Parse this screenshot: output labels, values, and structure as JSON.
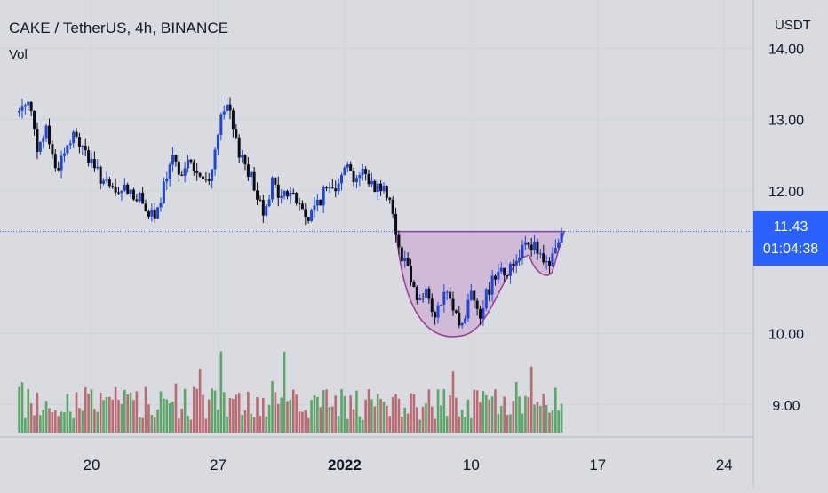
{
  "chart_title": "CAKE / TetherUS, 4h, BINANCE",
  "volume_label": "Vol",
  "currency": "USDT",
  "price_badge": {
    "price": "11.43",
    "countdown": "01:04:38"
  },
  "colors": {
    "background": "#d9dbe0",
    "axis_border": "#b7bbc4",
    "up_candle": "#1f45d6",
    "down_candle": "#0a0d16",
    "volume_up": "#5aa567",
    "volume_down": "#b96a72",
    "pattern_fill": "#cdb4d6",
    "pattern_stroke": "#9a3c93",
    "last_price_line": "#2962ff",
    "badge": "#2962ff"
  },
  "chart_data": {
    "type": "candlestick",
    "title": "CAKE / TetherUS, 4h, BINANCE",
    "y_axis": {
      "label": "USDT",
      "ticks": [
        {
          "value": 14.0,
          "label": "14.00"
        },
        {
          "value": 13.0,
          "label": "13.00"
        },
        {
          "value": 12.0,
          "label": "12.00"
        },
        {
          "value": 10.0,
          "label": "10.00"
        },
        {
          "value": 9.0,
          "label": "9.00"
        }
      ],
      "range": [
        8.5,
        14.5
      ]
    },
    "x_axis": {
      "ticks": [
        {
          "date": "2021-12-20",
          "label": "20",
          "bold": false
        },
        {
          "date": "2021-12-27",
          "label": "27",
          "bold": false
        },
        {
          "date": "2022-01-03",
          "label": "2022",
          "bold": true
        },
        {
          "date": "2022-01-10",
          "label": "10",
          "bold": false
        },
        {
          "date": "2022-01-17",
          "label": "17",
          "bold": false
        },
        {
          "date": "2022-01-24",
          "label": "24",
          "bold": false
        }
      ]
    },
    "last_price": 11.43,
    "series": [
      {
        "kind": "price_path_close",
        "points": [
          [
            "2021-12-16",
            13.1
          ],
          [
            "2021-12-16T12",
            13.35
          ],
          [
            "2021-12-17",
            12.5
          ],
          [
            "2021-12-17T12",
            12.9
          ],
          [
            "2021-12-18",
            12.3
          ],
          [
            "2021-12-18T12",
            12.55
          ],
          [
            "2021-12-19",
            12.75
          ],
          [
            "2021-12-19T12",
            12.65
          ],
          [
            "2021-12-20",
            12.35
          ],
          [
            "2021-12-20T12",
            12.2
          ],
          [
            "2021-12-21",
            12.0
          ],
          [
            "2021-12-21T12",
            11.95
          ],
          [
            "2021-12-22",
            12.05
          ],
          [
            "2021-12-22T12",
            11.9
          ],
          [
            "2021-12-23",
            11.8
          ],
          [
            "2021-12-23T12",
            11.55
          ],
          [
            "2021-12-24",
            12.05
          ],
          [
            "2021-12-24T12",
            12.4
          ],
          [
            "2021-12-25",
            12.3
          ],
          [
            "2021-12-25T12",
            12.4
          ],
          [
            "2021-12-26",
            12.15
          ],
          [
            "2021-12-26T12",
            12.1
          ],
          [
            "2021-12-27",
            12.85
          ],
          [
            "2021-12-27T12",
            13.2
          ],
          [
            "2021-12-28",
            12.65
          ],
          [
            "2021-12-28T12",
            12.4
          ],
          [
            "2021-12-29",
            12.05
          ],
          [
            "2021-12-29T12",
            11.75
          ],
          [
            "2021-12-30",
            12.1
          ],
          [
            "2021-12-30T12",
            11.9
          ],
          [
            "2021-12-31",
            12.0
          ],
          [
            "2022-01-01",
            11.6
          ],
          [
            "2022-01-01T12",
            11.85
          ],
          [
            "2022-01-02",
            12.0
          ],
          [
            "2022-01-02T12",
            12.1
          ],
          [
            "2022-01-03",
            12.4
          ],
          [
            "2022-01-03T12",
            12.2
          ],
          [
            "2022-01-04",
            12.25
          ],
          [
            "2022-01-04T12",
            12.1
          ],
          [
            "2022-01-05",
            12.05
          ],
          [
            "2022-01-05T12",
            11.95
          ],
          [
            "2022-01-06",
            11.2
          ],
          [
            "2022-01-06T12",
            10.95
          ],
          [
            "2022-01-07",
            10.5
          ],
          [
            "2022-01-07T12",
            10.6
          ],
          [
            "2022-01-08",
            10.2
          ],
          [
            "2022-01-08T12",
            10.55
          ],
          [
            "2022-01-09",
            10.35
          ],
          [
            "2022-01-09T12",
            10.1
          ],
          [
            "2022-01-10",
            10.6
          ],
          [
            "2022-01-10T12",
            10.3
          ],
          [
            "2022-01-11",
            10.65
          ],
          [
            "2022-01-11T12",
            10.95
          ],
          [
            "2022-01-12",
            10.85
          ],
          [
            "2022-01-12T12",
            11.05
          ],
          [
            "2022-01-13",
            11.35
          ],
          [
            "2022-01-13T12",
            11.2
          ],
          [
            "2022-01-14",
            10.95
          ],
          [
            "2022-01-14T12",
            11.05
          ],
          [
            "2022-01-15",
            11.43
          ]
        ]
      }
    ],
    "pattern": {
      "type": "cup_and_handle",
      "rim_price": 11.43,
      "cup_bottom": 9.97,
      "cup_bottom_date": "2022-01-09T12",
      "handle_bottom": 10.8
    }
  }
}
